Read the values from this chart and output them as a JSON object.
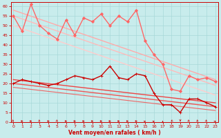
{
  "xlabel": "Vent moyen/en rafales ( km/h )",
  "xlim": [
    -0.3,
    23.3
  ],
  "ylim": [
    0,
    62
  ],
  "yticks": [
    0,
    5,
    10,
    15,
    20,
    25,
    30,
    35,
    40,
    45,
    50,
    55,
    60
  ],
  "xticks": [
    0,
    1,
    2,
    3,
    4,
    5,
    6,
    7,
    8,
    9,
    10,
    11,
    12,
    13,
    14,
    15,
    16,
    17,
    18,
    19,
    20,
    21,
    22,
    23
  ],
  "bg_color": "#c8ecec",
  "grid_color": "#a8d8d8",
  "series": [
    {
      "x": [
        0,
        23
      ],
      "y": [
        58,
        22
      ],
      "color": "#ffaaaa",
      "lw": 1.0,
      "marker": null,
      "ms": 0,
      "zorder": 2
    },
    {
      "x": [
        0,
        23
      ],
      "y": [
        55,
        19
      ],
      "color": "#ffbbbb",
      "lw": 1.0,
      "marker": null,
      "ms": 0,
      "zorder": 2
    },
    {
      "x": [
        0,
        23
      ],
      "y": [
        50,
        14
      ],
      "color": "#ffcccc",
      "lw": 1.0,
      "marker": null,
      "ms": 0,
      "zorder": 2
    },
    {
      "x": [
        0,
        23
      ],
      "y": [
        22,
        10
      ],
      "color": "#ee4444",
      "lw": 1.0,
      "marker": null,
      "ms": 0,
      "zorder": 2
    },
    {
      "x": [
        0,
        23
      ],
      "y": [
        20,
        8
      ],
      "color": "#ee5555",
      "lw": 1.0,
      "marker": null,
      "ms": 0,
      "zorder": 2
    },
    {
      "x": [
        0,
        23
      ],
      "y": [
        18,
        6
      ],
      "color": "#ee6666",
      "lw": 0.8,
      "marker": null,
      "ms": 0,
      "zorder": 2
    },
    {
      "x": [
        0,
        1,
        2,
        3,
        4,
        5,
        6,
        7,
        8,
        9,
        10,
        11,
        12,
        13,
        14,
        15,
        16,
        17,
        18,
        19,
        20,
        21,
        22,
        23
      ],
      "y": [
        55,
        47,
        61,
        50,
        46,
        43,
        53,
        45,
        54,
        52,
        56,
        50,
        55,
        52,
        58,
        42,
        35,
        30,
        17,
        16,
        24,
        22,
        23,
        21
      ],
      "color": "#ff6666",
      "lw": 1.0,
      "marker": "D",
      "ms": 2.0,
      "zorder": 4
    },
    {
      "x": [
        0,
        1,
        2,
        3,
        4,
        5,
        6,
        7,
        8,
        9,
        10,
        11,
        12,
        13,
        14,
        15,
        16,
        17,
        18,
        19,
        20,
        21,
        22,
        23
      ],
      "y": [
        20,
        22,
        21,
        20,
        19,
        20,
        22,
        24,
        23,
        22,
        24,
        29,
        23,
        22,
        25,
        24,
        15,
        9,
        9,
        5,
        12,
        12,
        10,
        8
      ],
      "color": "#cc0000",
      "lw": 1.0,
      "marker": "+",
      "ms": 3.5,
      "zorder": 4
    }
  ],
  "wind_arrow_color": "#cc0000"
}
